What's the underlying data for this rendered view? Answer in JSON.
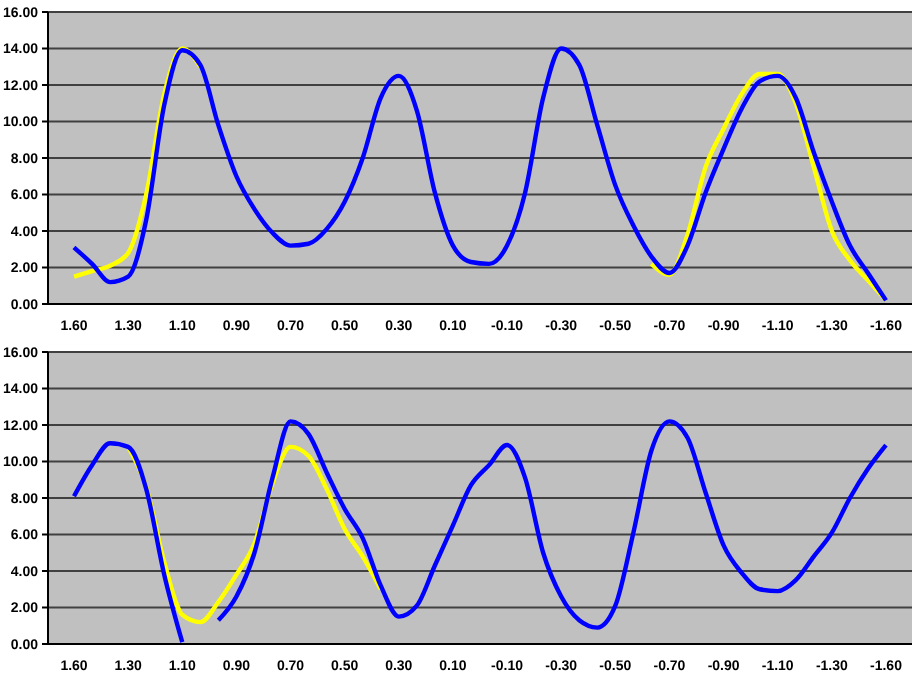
{
  "chart_data": [
    {
      "type": "line",
      "categories": [
        "1.60",
        null,
        null,
        "1.30",
        null,
        null,
        "1.10",
        null,
        null,
        "0.90",
        null,
        null,
        "0.70",
        null,
        null,
        "0.50",
        null,
        null,
        "0.30",
        null,
        null,
        "0.10",
        null,
        null,
        "-0.10",
        null,
        null,
        "-0.30",
        null,
        null,
        "-0.50",
        null,
        null,
        "-0.70",
        null,
        null,
        "-0.90",
        null,
        null,
        "-1.10",
        null,
        null,
        "-1.30",
        null,
        null,
        "-1.60"
      ],
      "series": [
        {
          "color": "#ffff00",
          "values": [
            1.5,
            1.8,
            2.1,
            2.8,
            6.0,
            11.5,
            14.0,
            13.0,
            null,
            null,
            null,
            null,
            null,
            null,
            null,
            null,
            null,
            null,
            null,
            null,
            null,
            null,
            null,
            null,
            null,
            null,
            null,
            null,
            null,
            null,
            null,
            null,
            2.2,
            1.6,
            3.8,
            7.5,
            9.6,
            11.5,
            12.6,
            12.6,
            11.0,
            7.5,
            4.0,
            2.4,
            1.3,
            0.2
          ]
        },
        {
          "color": "#0000ff",
          "values": [
            3.1,
            2.2,
            1.2,
            1.5,
            4.6,
            10.9,
            13.9,
            13.1,
            9.8,
            7.0,
            5.2,
            3.9,
            3.2,
            3.3,
            4.1,
            5.6,
            8.0,
            11.3,
            12.5,
            10.6,
            6.1,
            3.2,
            2.3,
            2.2,
            3.2,
            6.1,
            11.3,
            14.0,
            13.1,
            9.8,
            6.5,
            4.3,
            2.6,
            1.7,
            3.2,
            6.1,
            8.5,
            10.7,
            12.2,
            12.5,
            11.3,
            8.3,
            5.6,
            3.2,
            1.7,
            0.2
          ]
        }
      ],
      "ylim": [
        0,
        16
      ],
      "yticks": [
        {
          "value": 0,
          "label": "0.00"
        },
        {
          "value": 2,
          "label": "2.00"
        },
        {
          "value": 4,
          "label": "4.00"
        },
        {
          "value": 6,
          "label": "6.00"
        },
        {
          "value": 8,
          "label": "8.00"
        },
        {
          "value": 10,
          "label": "10.00"
        },
        {
          "value": 12,
          "label": "12.00"
        },
        {
          "value": 14,
          "label": "14.00"
        },
        {
          "value": 16,
          "label": "16.00"
        }
      ],
      "grid": "y",
      "marker": "none",
      "line_style": "solid",
      "legend": false
    },
    {
      "type": "line",
      "categories": [
        "1.60",
        null,
        null,
        "1.30",
        null,
        null,
        "1.10",
        null,
        null,
        "0.90",
        null,
        null,
        "0.70",
        null,
        null,
        "0.50",
        null,
        null,
        "0.30",
        null,
        null,
        "0.10",
        null,
        null,
        "-0.10",
        null,
        null,
        "-0.30",
        null,
        null,
        "-0.50",
        null,
        null,
        "-0.70",
        null,
        null,
        "-0.90",
        null,
        null,
        "-1.10",
        null,
        null,
        "-1.30",
        null,
        null,
        "-1.60"
      ],
      "series": [
        {
          "color": "#ffff00",
          "values": [
            null,
            null,
            null,
            10.8,
            8.6,
            4.5,
            1.6,
            1.2,
            2.3,
            3.8,
            5.5,
            8.8,
            10.8,
            10.3,
            8.5,
            6.3,
            4.8,
            3.0,
            null,
            null,
            null,
            null,
            null,
            null,
            null,
            null,
            null,
            null,
            null,
            null,
            null,
            null,
            null,
            null,
            null,
            null,
            null,
            null,
            null,
            null,
            null,
            null,
            null,
            null,
            null,
            null
          ]
        },
        {
          "color": "#0000ff",
          "values": [
            8.1,
            9.8,
            11.0,
            10.8,
            8.5,
            3.8,
            0.1,
            null,
            1.3,
            2.6,
            5.0,
            9.1,
            12.2,
            11.5,
            9.4,
            7.4,
            5.8,
            3.2,
            1.5,
            2.1,
            4.3,
            6.5,
            8.7,
            9.8,
            10.9,
            9.1,
            5.0,
            2.6,
            1.3,
            0.9,
            2.1,
            6.1,
            10.6,
            12.2,
            11.3,
            8.3,
            5.4,
            3.9,
            3.0,
            2.9,
            3.5,
            4.8,
            6.1,
            8.0,
            9.6,
            10.9
          ]
        }
      ],
      "ylim": [
        0,
        16
      ],
      "yticks": [
        {
          "value": 0,
          "label": "0.00"
        },
        {
          "value": 2,
          "label": "2.00"
        },
        {
          "value": 4,
          "label": "4.00"
        },
        {
          "value": 6,
          "label": "6.00"
        },
        {
          "value": 8,
          "label": "8.00"
        },
        {
          "value": 10,
          "label": "10.00"
        },
        {
          "value": 12,
          "label": "12.00"
        },
        {
          "value": 14,
          "label": "14.00"
        },
        {
          "value": 16,
          "label": "16.00"
        }
      ],
      "grid": "y",
      "marker": "none",
      "line_style": "solid",
      "legend": false
    }
  ]
}
